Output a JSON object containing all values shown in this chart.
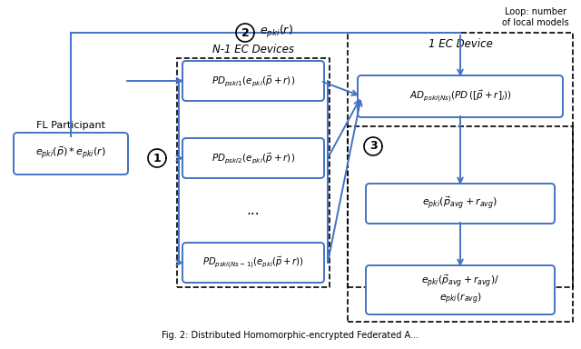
{
  "background_color": "#ffffff",
  "box_edge_color": "#4472C4",
  "box_face_color": "#ffffff",
  "arrow_color": "#4472C4",
  "dashed_color": "#000000",
  "text_color": "#000000",
  "fl_participant_label": "FL Participant",
  "fl_box_text": "$e_{pki}(\\vec{p}) * e_{pki}(r)$",
  "n1_ec_label": "N-1 EC Devices",
  "one_ec_label": "1 EC Device",
  "loop_label": "Loop: number\nof local models",
  "pd1_text": "$PD_{pski1}(e_{pki}(\\vec{p}+r))$",
  "pd2_text": "$PD_{pski2}(e_{pki}(\\vec{p}+r))$",
  "pd3_text": "$PD_{pski(Ns-1)}(e_{pki}(\\vec{p}+r))$",
  "ad_text": "$AD_{pski(Ns)}(PD\\,([ \\vec{p}+r]_i))$",
  "avg_text": "$e_{pki}(\\vec{p}_{avg}+r_{avg})$",
  "div_text": "$e_{pki}(\\vec{p}_{avg}+r_{avg})/$\n$e_{pki}(r_{avg})$",
  "dots_text": "...",
  "step1": "1",
  "step2": "2",
  "step3": "3",
  "epki_r_label": "$e_{pki}(r)$",
  "caption": "Fig. 2: Distributed Homomorphic-encrypted Federated A..."
}
